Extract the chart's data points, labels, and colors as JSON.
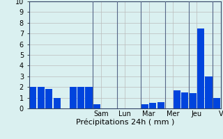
{
  "bar_values": [
    2.0,
    2.0,
    1.8,
    1.0,
    0.0,
    2.0,
    2.0,
    2.0,
    0.4,
    0.0,
    0.0,
    0.0,
    0.0,
    0.0,
    0.4,
    0.5,
    0.6,
    0.0,
    1.7,
    1.5,
    1.4,
    7.5,
    3.0,
    1.0
  ],
  "day_labels": [
    "Sam",
    "Lun",
    "Mar",
    "Mer",
    "Jeu",
    "V"
  ],
  "day_tick_positions": [
    8.5,
    11.5,
    14.5,
    17.5,
    20.5,
    23.5
  ],
  "day_sep_positions": [
    7.5,
    10.5,
    13.5,
    16.5,
    19.5,
    22.5
  ],
  "ylabel_ticks": [
    0,
    1,
    2,
    3,
    4,
    5,
    6,
    7,
    8,
    9,
    10
  ],
  "xlabel": "Précipitations 24h ( mm )",
  "bar_color": "#0044dd",
  "bg_color": "#daf0f0",
  "grid_color": "#bbbbbb",
  "sep_color": "#556688",
  "ylim": [
    0,
    10
  ],
  "tick_fontsize": 7,
  "label_fontsize": 8
}
